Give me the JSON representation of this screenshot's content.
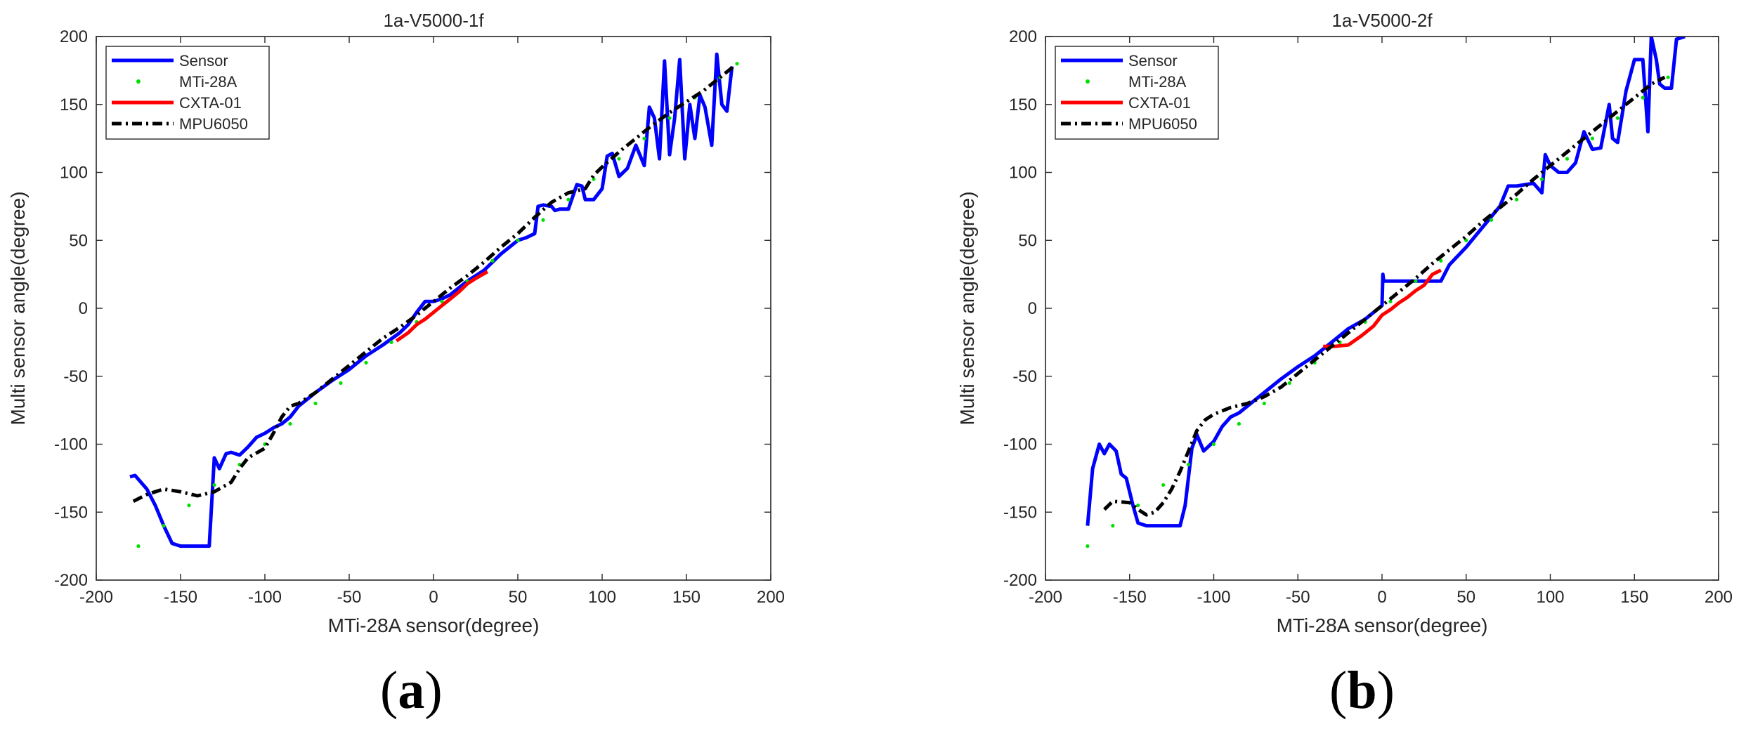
{
  "panel_labels": {
    "a": "a",
    "b": "b"
  },
  "colors": {
    "sensor": "#0000ff",
    "mti": "#00e000",
    "cxta": "#ff0000",
    "mpu": "#000000"
  },
  "chart_data": [
    {
      "type": "line",
      "title": "1a-V5000-1f",
      "xlabel": "MTi-28A sensor(degree)",
      "ylabel": "Multi sensor angle(degree)",
      "xlim": [
        -200,
        200
      ],
      "ylim": [
        -200,
        200
      ],
      "xticks": [
        -200,
        -150,
        -100,
        -50,
        0,
        50,
        100,
        150,
        200
      ],
      "yticks": [
        -200,
        -150,
        -100,
        -50,
        0,
        50,
        100,
        150,
        200
      ],
      "legend": [
        "Sensor",
        "MTi-28A",
        "CXTA-01",
        "MPU6050"
      ],
      "legend_position": "top-left",
      "series": [
        {
          "name": "Sensor",
          "style": "solid",
          "color": "#0000ff",
          "x": [
            -180,
            -177,
            -170,
            -165,
            -160,
            -155,
            -150,
            -140,
            -133,
            -130,
            -127,
            -123,
            -120,
            -115,
            -110,
            -105,
            -100,
            -95,
            -90,
            -85,
            -80,
            -70,
            -60,
            -50,
            -40,
            -30,
            -20,
            -15,
            -10,
            -5,
            0,
            5,
            10,
            20,
            30,
            40,
            50,
            55,
            60,
            62,
            65,
            70,
            72,
            75,
            80,
            85,
            88,
            90,
            95,
            100,
            103,
            106,
            110,
            115,
            120,
            125,
            128,
            131,
            134,
            137,
            140,
            143,
            146,
            149,
            152,
            155,
            158,
            161,
            165,
            168,
            171,
            174,
            177
          ],
          "y": [
            -124,
            -123,
            -133,
            -145,
            -160,
            -173,
            -175,
            -175,
            -175,
            -110,
            -118,
            -107,
            -106,
            -108,
            -102,
            -95,
            -92,
            -88,
            -85,
            -80,
            -72,
            -62,
            -53,
            -45,
            -35,
            -27,
            -18,
            -12,
            -3,
            5,
            5,
            7,
            10,
            20,
            28,
            40,
            50,
            52,
            55,
            75,
            76,
            75,
            72,
            73,
            73,
            91,
            90,
            80,
            80,
            88,
            112,
            114,
            97,
            103,
            120,
            105,
            148,
            140,
            110,
            182,
            113,
            140,
            183,
            110,
            150,
            125,
            157,
            148,
            120,
            187,
            150,
            145,
            178
          ]
        },
        {
          "name": "MTi-28A",
          "style": "dotted",
          "color": "#00e000",
          "x": [
            -175,
            -160,
            -145,
            -130,
            -115,
            -100,
            -85,
            -70,
            -55,
            -40,
            -25,
            -10,
            5,
            20,
            35,
            50,
            65,
            80,
            95,
            110,
            125,
            140,
            155,
            170,
            180
          ],
          "y": [
            -175,
            -160,
            -145,
            -130,
            -115,
            -100,
            -85,
            -70,
            -55,
            -40,
            -25,
            -10,
            5,
            20,
            35,
            50,
            65,
            80,
            95,
            110,
            125,
            140,
            155,
            170,
            180
          ]
        },
        {
          "name": "CXTA-01",
          "style": "solid",
          "color": "#ff0000",
          "x": [
            -22,
            -15,
            -10,
            -5,
            0,
            5,
            10,
            15,
            20,
            25,
            32
          ],
          "y": [
            -24,
            -18,
            -12,
            -8,
            -3,
            2,
            7,
            12,
            18,
            22,
            27
          ]
        },
        {
          "name": "MPU6050",
          "style": "dashdot",
          "color": "#000000",
          "x": [
            -178,
            -170,
            -160,
            -150,
            -140,
            -130,
            -120,
            -115,
            -110,
            -100,
            -95,
            -90,
            -85,
            -80,
            -70,
            -60,
            -50,
            -40,
            -30,
            -20,
            -10,
            0,
            10,
            20,
            30,
            40,
            50,
            60,
            70,
            80,
            90,
            95,
            100,
            110,
            120,
            130,
            140,
            150,
            160,
            170,
            178
          ],
          "y": [
            -142,
            -137,
            -133,
            -135,
            -138,
            -135,
            -128,
            -118,
            -110,
            -103,
            -92,
            -80,
            -72,
            -70,
            -62,
            -52,
            -42,
            -32,
            -22,
            -14,
            -5,
            5,
            15,
            24,
            34,
            45,
            55,
            67,
            78,
            85,
            88,
            98,
            104,
            115,
            125,
            135,
            144,
            152,
            160,
            170,
            178
          ]
        }
      ]
    },
    {
      "type": "line",
      "title": "1a-V5000-2f",
      "xlabel": "MTi-28A sensor(degree)",
      "ylabel": "Multi sensor angle(degree)",
      "xlim": [
        -200,
        200
      ],
      "ylim": [
        -200,
        200
      ],
      "xticks": [
        -200,
        -150,
        -100,
        -50,
        0,
        50,
        100,
        150,
        200
      ],
      "yticks": [
        -200,
        -150,
        -100,
        -50,
        0,
        50,
        100,
        150,
        200
      ],
      "legend": [
        "Sensor",
        "MTi-28A",
        "CXTA-01",
        "MPU6050"
      ],
      "legend_position": "top-left",
      "series": [
        {
          "name": "Sensor",
          "style": "solid",
          "color": "#0000ff",
          "x": [
            -175,
            -172,
            -168,
            -165,
            -162,
            -158,
            -155,
            -152,
            -148,
            -145,
            -140,
            -130,
            -120,
            -117,
            -113,
            -110,
            -106,
            -100,
            -95,
            -90,
            -85,
            -80,
            -70,
            -60,
            -50,
            -40,
            -30,
            -20,
            -10,
            -5,
            0,
            0.5,
            1,
            5,
            10,
            20,
            30,
            35,
            40,
            50,
            60,
            70,
            75,
            80,
            90,
            95,
            97,
            100,
            105,
            110,
            115,
            120,
            125,
            130,
            135,
            137,
            140,
            145,
            150,
            155,
            158,
            160,
            163,
            165,
            168,
            172,
            175,
            180
          ],
          "y": [
            -160,
            -118,
            -100,
            -107,
            -100,
            -105,
            -122,
            -125,
            -145,
            -158,
            -160,
            -160,
            -160,
            -145,
            -103,
            -93,
            -105,
            -98,
            -87,
            -80,
            -77,
            -72,
            -62,
            -52,
            -43,
            -35,
            -25,
            -15,
            -8,
            -3,
            2,
            25,
            20,
            20,
            20,
            20,
            20,
            20,
            32,
            45,
            60,
            75,
            90,
            90,
            92,
            85,
            113,
            105,
            100,
            100,
            107,
            130,
            117,
            118,
            150,
            125,
            122,
            160,
            183,
            183,
            130,
            200,
            183,
            165,
            162,
            162,
            198,
            200
          ]
        },
        {
          "name": "MTi-28A",
          "style": "dotted",
          "color": "#00e000",
          "x": [
            -175,
            -160,
            -145,
            -130,
            -115,
            -100,
            -85,
            -70,
            -55,
            -40,
            -25,
            -10,
            5,
            20,
            35,
            50,
            65,
            80,
            95,
            110,
            125,
            140,
            155,
            170
          ],
          "y": [
            -175,
            -160,
            -145,
            -130,
            -115,
            -100,
            -85,
            -70,
            -55,
            -40,
            -25,
            -10,
            5,
            20,
            35,
            50,
            65,
            80,
            95,
            110,
            125,
            140,
            155,
            170
          ]
        },
        {
          "name": "CXTA-01",
          "style": "solid",
          "color": "#ff0000",
          "x": [
            -35,
            -28,
            -20,
            -12,
            -5,
            0,
            5,
            10,
            15,
            20,
            25,
            30,
            35
          ],
          "y": [
            -28,
            -28,
            -27,
            -20,
            -13,
            -5,
            -1,
            4,
            8,
            13,
            17,
            25,
            28
          ]
        },
        {
          "name": "MPU6050",
          "style": "dashdot",
          "color": "#000000",
          "x": [
            -165,
            -160,
            -150,
            -145,
            -140,
            -135,
            -130,
            -125,
            -120,
            -115,
            -110,
            -105,
            -100,
            -90,
            -80,
            -70,
            -60,
            -50,
            -40,
            -30,
            -20,
            -10,
            0,
            10,
            20,
            30,
            40,
            50,
            60,
            70,
            80,
            90,
            100,
            110,
            120,
            130,
            140,
            150,
            160,
            168
          ],
          "y": [
            -148,
            -142,
            -143,
            -148,
            -152,
            -150,
            -143,
            -133,
            -120,
            -105,
            -90,
            -82,
            -78,
            -73,
            -70,
            -65,
            -58,
            -48,
            -38,
            -28,
            -18,
            -8,
            2,
            12,
            22,
            33,
            43,
            53,
            64,
            74,
            84,
            95,
            105,
            115,
            125,
            135,
            145,
            155,
            165,
            170
          ]
        }
      ]
    }
  ]
}
